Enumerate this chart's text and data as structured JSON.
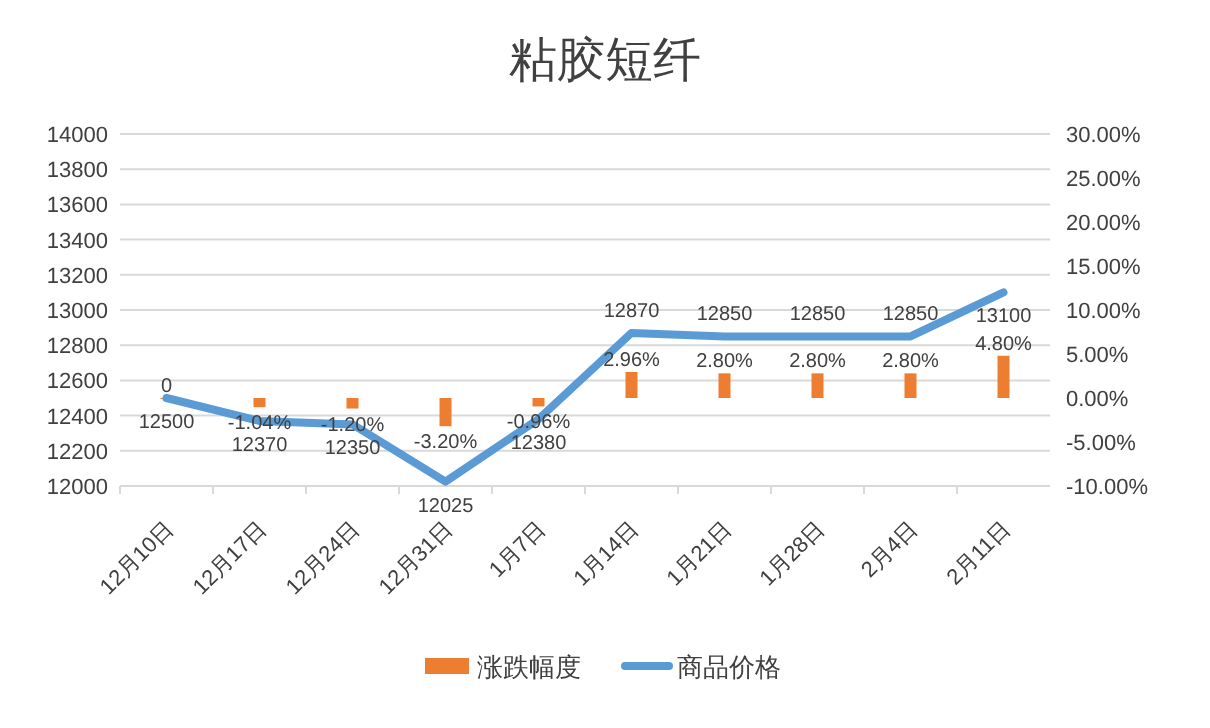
{
  "chart_data": {
    "type": "bar",
    "title": "粘胶短纤",
    "categories": [
      "12月10日",
      "12月17日",
      "12月24日",
      "12月31日",
      "1月7日",
      "1月14日",
      "1月21日",
      "1月28日",
      "2月4日",
      "2月11日"
    ],
    "series": [
      {
        "name": "涨跌幅度",
        "axis": "y2",
        "color": "#ed7d31",
        "values": [
          0,
          -1.04,
          -1.2,
          -3.2,
          -0.96,
          2.96,
          2.8,
          2.8,
          2.8,
          4.8
        ],
        "value_labels": [
          "0",
          "-1.04%",
          "-1.20%",
          "-3.20%",
          "-0.96%",
          "2.96%",
          "2.80%",
          "2.80%",
          "2.80%",
          "4.80%"
        ]
      },
      {
        "name": "商品价格",
        "type": "line",
        "axis": "y",
        "color": "#5b9bd5",
        "values": [
          12500,
          12370,
          12350,
          12025,
          12380,
          12870,
          12850,
          12850,
          12850,
          13100
        ],
        "value_labels": [
          "12500",
          "12370",
          "12350",
          "12025",
          "12380",
          "12870",
          "12850",
          "12850",
          "12850",
          "13100"
        ]
      }
    ],
    "ylim": [
      12000,
      14000
    ],
    "yticks": [
      12000,
      12200,
      12400,
      12600,
      12800,
      13000,
      13200,
      13400,
      13600,
      13800,
      14000
    ],
    "y2lim": [
      -10,
      30
    ],
    "y2ticks": [
      {
        "value": -10,
        "label": "-10.00%"
      },
      {
        "value": -5,
        "label": "-5.00%"
      },
      {
        "value": 0,
        "label": "0.00%"
      },
      {
        "value": 5,
        "label": "5.00%"
      },
      {
        "value": 10,
        "label": "10.00%"
      },
      {
        "value": 15,
        "label": "15.00%"
      },
      {
        "value": 20,
        "label": "20.00%"
      },
      {
        "value": 25,
        "label": "25.00%"
      },
      {
        "value": 30,
        "label": "30.00%"
      }
    ],
    "grid": "y",
    "legend": "bottom"
  }
}
